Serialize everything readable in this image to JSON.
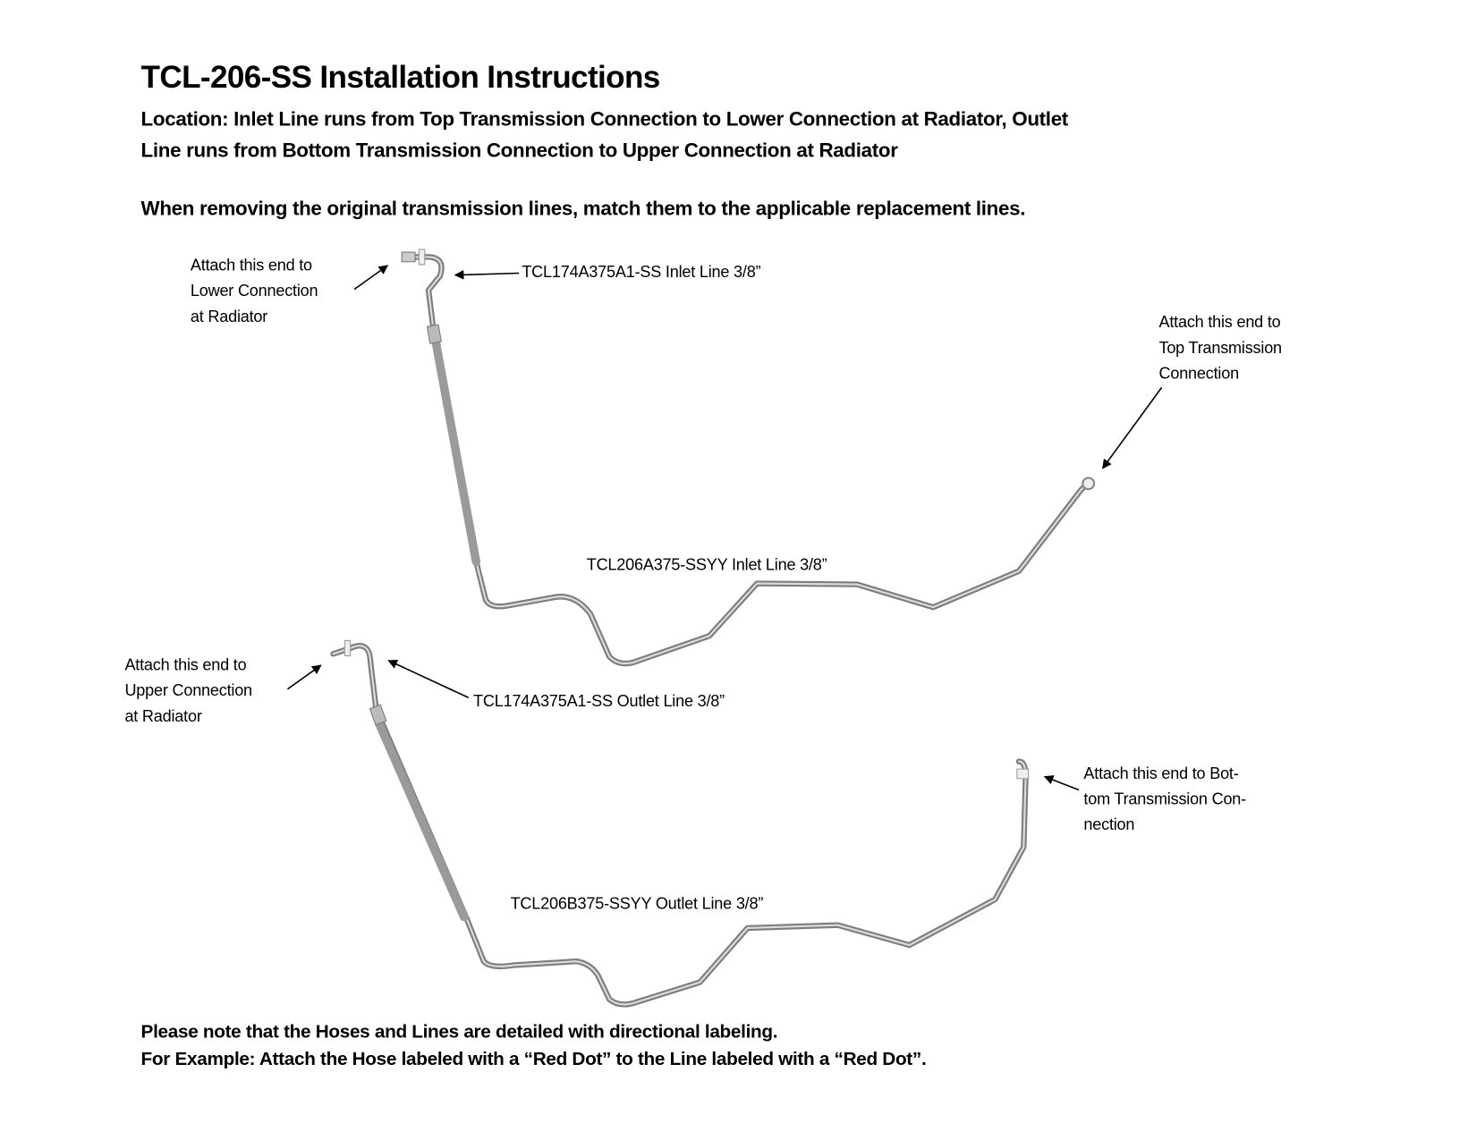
{
  "header": {
    "title": "TCL-206-SS Installation Instructions",
    "location_line1": "Location: Inlet Line runs from Top Transmission Connection to Lower Connection at Radiator, Outlet",
    "location_line2": "Line runs from Bottom Transmission Connection to Upper Connection at Radiator",
    "instruction": "When removing the original transmission lines, match them to the applicable replacement lines."
  },
  "diagram": {
    "inlet": {
      "radiator_end": [
        "Attach this end to",
        "Lower Connection",
        "at Radiator"
      ],
      "hose_label": "TCL174A375A1-SS Inlet Line 3/8”",
      "line_label": "TCL206A375-SSYY Inlet Line 3/8”",
      "transmission_end": [
        "Attach this end to",
        "Top Transmission",
        "Connection"
      ]
    },
    "outlet": {
      "radiator_end": [
        "Attach this end to",
        "Upper Connection",
        "at Radiator"
      ],
      "hose_label": "TCL174A375A1-SS Outlet Line 3/8”",
      "line_label": "TCL206B375-SSYY Outlet Line 3/8”",
      "transmission_end": [
        "Attach this end to Bot-",
        "tom Transmission Con-",
        "nection"
      ]
    },
    "colors": {
      "pipe": "#8a8a8a",
      "pipe_highlight": "#d9d9d9"
    }
  },
  "footer": {
    "note_line1": "Please note that the Hoses and Lines are detailed with directional labeling.",
    "note_line2": "For Example: Attach the Hose labeled with a “Red Dot” to the Line labeled with a “Red Dot”."
  }
}
